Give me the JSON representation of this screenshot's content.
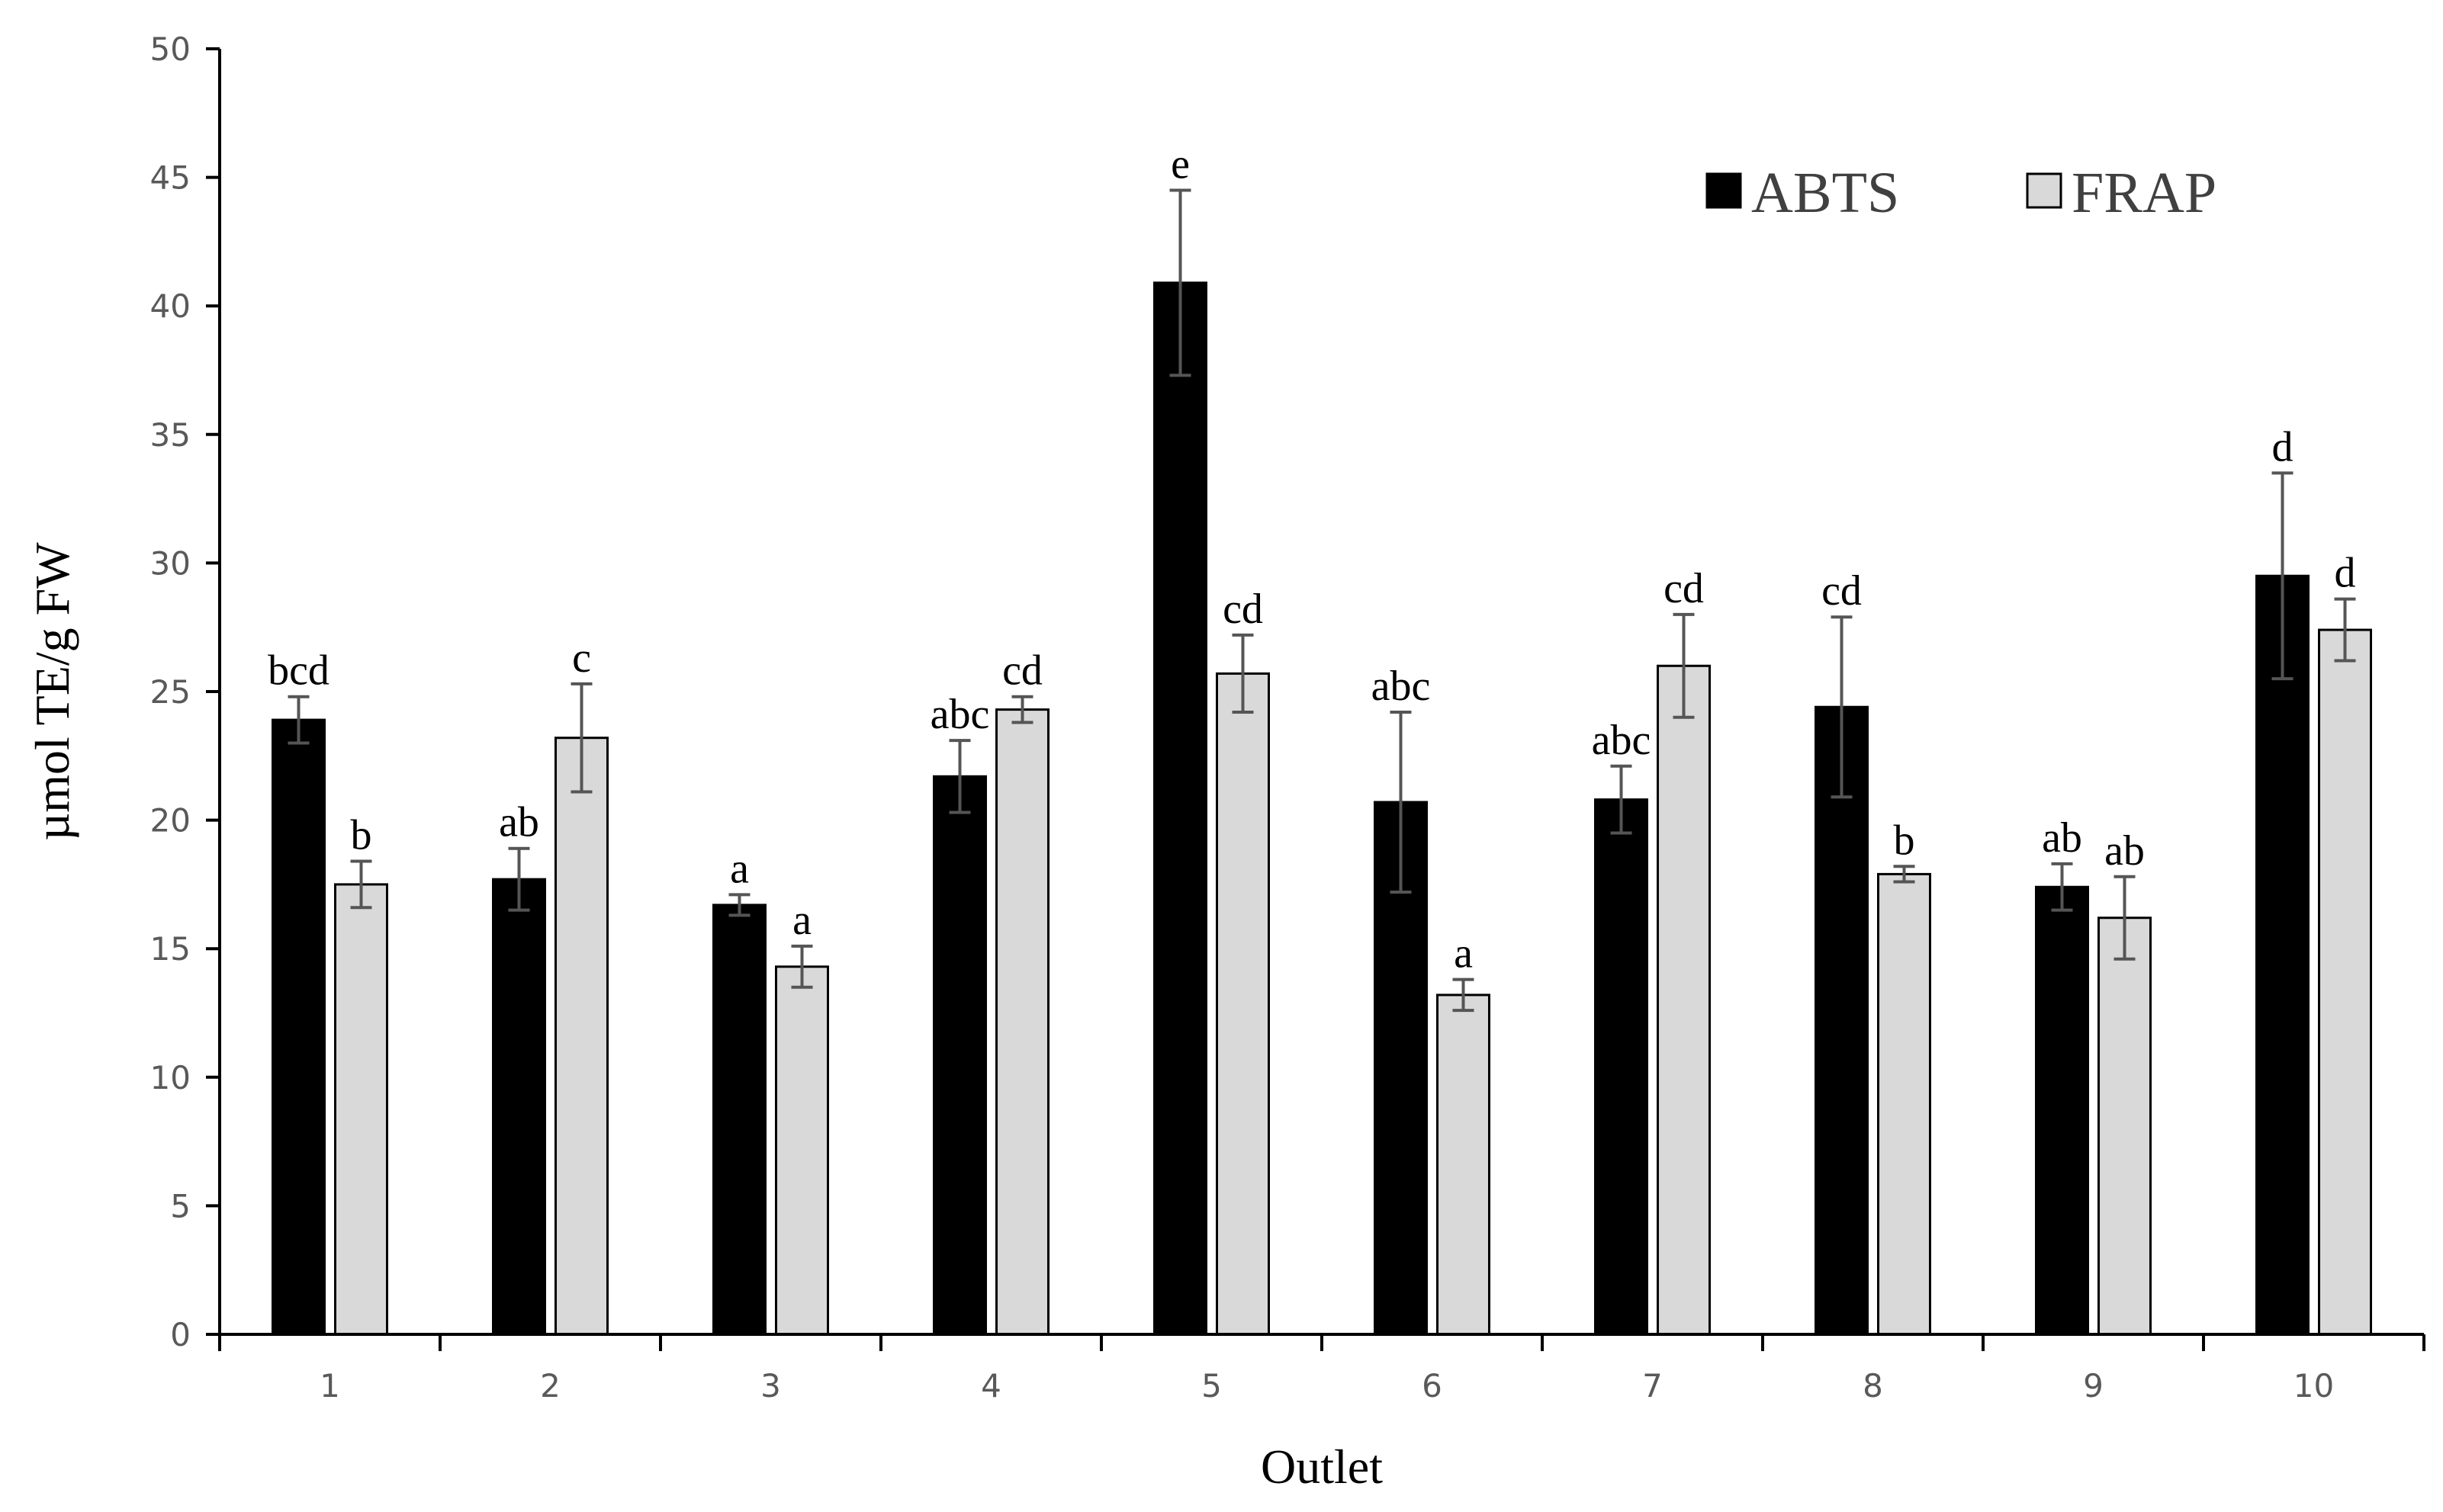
{
  "chart_data": {
    "type": "bar",
    "title": "",
    "xlabel": "Outlet",
    "ylabel": "µmol TE/g FW",
    "ylim": [
      0,
      50
    ],
    "yticks": [
      0,
      5,
      10,
      15,
      20,
      25,
      30,
      35,
      40,
      45,
      50
    ],
    "categories": [
      "1",
      "2",
      "3",
      "4",
      "5",
      "6",
      "7",
      "8",
      "9",
      "10"
    ],
    "legend_position": "top-right",
    "grid": false,
    "series": [
      {
        "name": "ABTS",
        "color": "#000000",
        "values": [
          23.9,
          17.7,
          16.7,
          21.7,
          40.9,
          20.7,
          20.8,
          24.4,
          17.4,
          29.5
        ],
        "errors": [
          0.9,
          1.2,
          0.4,
          1.4,
          3.6,
          3.5,
          1.3,
          3.5,
          0.9,
          4.0
        ],
        "labels": [
          "bcd",
          "ab",
          "a",
          "abc",
          "e",
          "abc",
          "abc",
          "cd",
          "ab",
          "d"
        ]
      },
      {
        "name": "FRAP",
        "color": "#d9d9d9",
        "values": [
          17.5,
          23.2,
          14.3,
          24.3,
          25.7,
          13.2,
          26.0,
          17.9,
          16.2,
          27.4
        ],
        "errors": [
          0.9,
          2.1,
          0.8,
          0.5,
          1.5,
          0.6,
          2.0,
          0.3,
          1.6,
          1.2
        ],
        "labels": [
          "b",
          "c",
          "a",
          "cd",
          "cd",
          "a",
          "cd",
          "b",
          "ab",
          "d"
        ]
      }
    ]
  }
}
